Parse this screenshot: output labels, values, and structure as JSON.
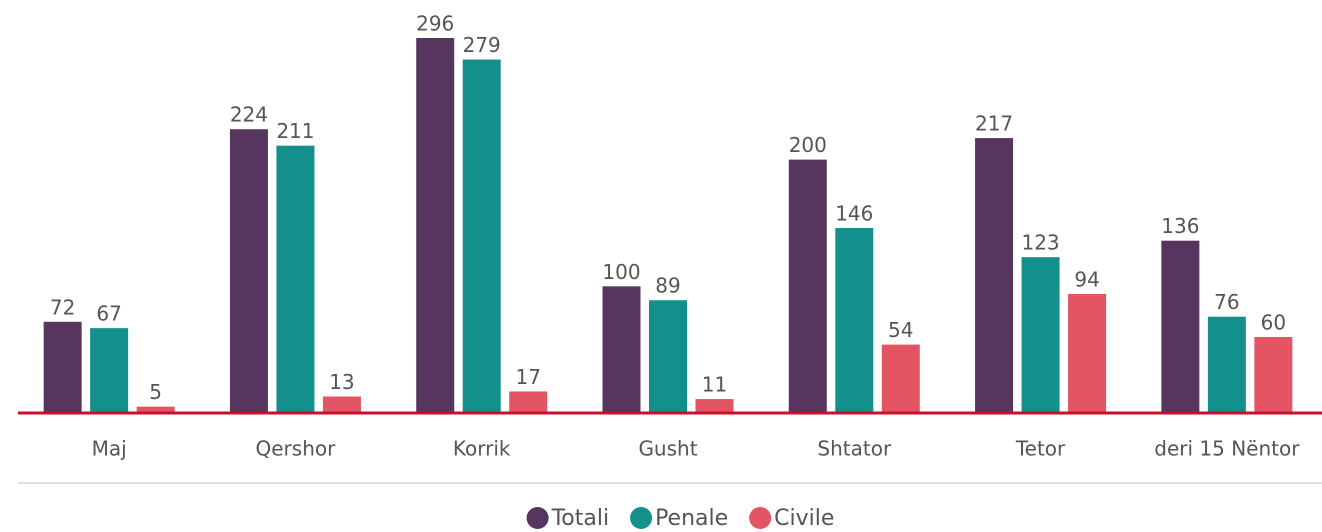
{
  "chart_data": {
    "type": "bar",
    "categories": [
      "Maj",
      "Qershor",
      "Korrik",
      "Gusht",
      "Shtator",
      "Tetor",
      "deri 15 Nëntor"
    ],
    "series": [
      {
        "name": "Totali",
        "color": "#56365e",
        "values": [
          72,
          224,
          296,
          100,
          200,
          217,
          136
        ]
      },
      {
        "name": "Penale",
        "color": "#14908c",
        "values": [
          67,
          211,
          279,
          89,
          146,
          123,
          76
        ]
      },
      {
        "name": "Civile",
        "color": "#e45563",
        "values": [
          5,
          13,
          17,
          11,
          54,
          94,
          60
        ]
      }
    ]
  }
}
